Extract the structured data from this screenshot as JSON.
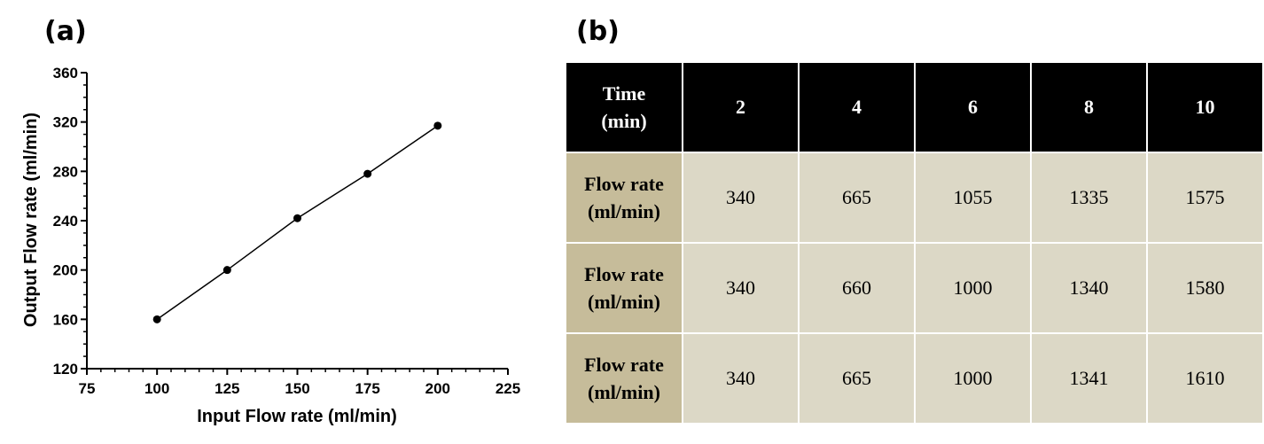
{
  "panels": {
    "a": "(a)",
    "b": "(b)"
  },
  "chart_data": {
    "type": "line",
    "title": "",
    "xlabel": "Input Flow rate (ml/min)",
    "ylabel": "Output Flow rate (ml/min)",
    "xlim": [
      75,
      225
    ],
    "ylim": [
      120,
      360
    ],
    "xticks": [
      75,
      100,
      125,
      150,
      175,
      200,
      225
    ],
    "yticks": [
      120,
      160,
      200,
      240,
      280,
      320,
      360
    ],
    "series": [
      {
        "name": "Output Flow rate",
        "x": [
          100,
          125,
          150,
          175,
          200
        ],
        "y": [
          160,
          200,
          242,
          278,
          317
        ]
      }
    ],
    "grid": false
  },
  "table": {
    "header_label_line1": "Time",
    "header_label_line2": "(min)",
    "columns": [
      "2",
      "4",
      "6",
      "8",
      "10"
    ],
    "rows": [
      {
        "label_line1": "Flow rate",
        "label_line2": "(ml/min)",
        "values": [
          "340",
          "665",
          "1055",
          "1335",
          "1575"
        ]
      },
      {
        "label_line1": "Flow rate",
        "label_line2": "(ml/min)",
        "values": [
          "340",
          "660",
          "1000",
          "1340",
          "1580"
        ]
      },
      {
        "label_line1": "Flow rate",
        "label_line2": "(ml/min)",
        "values": [
          "340",
          "665",
          "1000",
          "1341",
          "1610"
        ]
      }
    ]
  }
}
